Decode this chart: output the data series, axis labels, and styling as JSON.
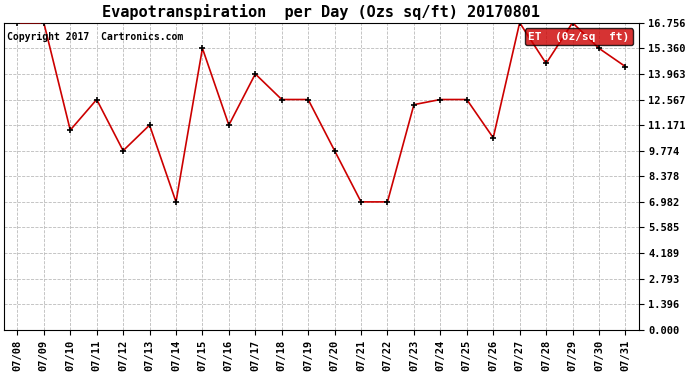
{
  "title": "Evapotranspiration  per Day (Ozs sq/ft) 20170801",
  "copyright": "Copyright 2017  Cartronics.com",
  "legend_label": "ET  (0z/sq  ft)",
  "dates": [
    "07/08",
    "07/09",
    "07/10",
    "07/11",
    "07/12",
    "07/13",
    "07/14",
    "07/15",
    "07/16",
    "07/17",
    "07/18",
    "07/19",
    "07/20",
    "07/21",
    "07/22",
    "07/23",
    "07/24",
    "07/25",
    "07/26",
    "07/27",
    "07/28",
    "07/29",
    "07/30",
    "07/31"
  ],
  "values": [
    16.756,
    16.756,
    10.897,
    12.567,
    9.774,
    11.171,
    6.982,
    15.36,
    11.171,
    13.963,
    12.567,
    12.567,
    9.774,
    6.982,
    6.982,
    12.287,
    12.567,
    12.567,
    10.478,
    16.756,
    14.533,
    16.756,
    15.36,
    14.364
  ],
  "line_color": "#cc0000",
  "marker_color": "#000000",
  "background_color": "#ffffff",
  "grid_color": "#bbbbbb",
  "legend_bg": "#cc0000",
  "legend_fg": "#ffffff",
  "yticks": [
    0.0,
    1.396,
    2.793,
    4.189,
    5.585,
    6.982,
    8.378,
    9.774,
    11.171,
    12.567,
    13.963,
    15.36,
    16.756
  ],
  "ymin": 0.0,
  "ymax": 16.756,
  "title_fontsize": 11,
  "tick_fontsize": 7.5,
  "copyright_fontsize": 7
}
